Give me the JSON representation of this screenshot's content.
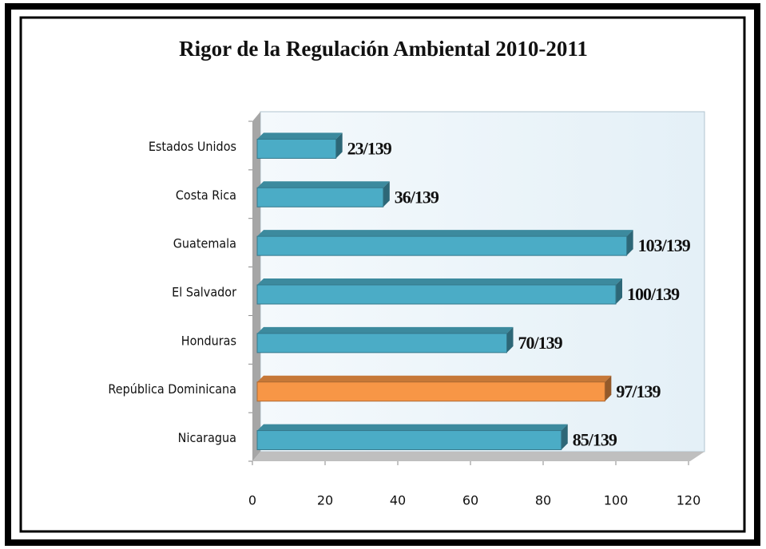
{
  "chart_data": {
    "type": "bar",
    "orientation": "horizontal",
    "title": "Rigor de la Regulación Ambiental 2010-2011",
    "categories": [
      "Estados Unidos",
      "Costa Rica",
      "Guatemala",
      "El Salvador",
      "Honduras",
      "República Dominicana",
      "Nicaragua"
    ],
    "values": [
      23,
      36,
      103,
      100,
      70,
      97,
      85
    ],
    "value_labels": [
      "23/139",
      "36/139",
      "103/139",
      "100/139",
      "70/139",
      "97/139",
      "85/139"
    ],
    "colors": [
      "#4bacc6",
      "#4bacc6",
      "#4bacc6",
      "#4bacc6",
      "#4bacc6",
      "#f79646",
      "#4bacc6"
    ],
    "xlim": [
      0,
      120
    ],
    "xticks": [
      0,
      20,
      40,
      60,
      80,
      100,
      120
    ],
    "grid": false
  }
}
